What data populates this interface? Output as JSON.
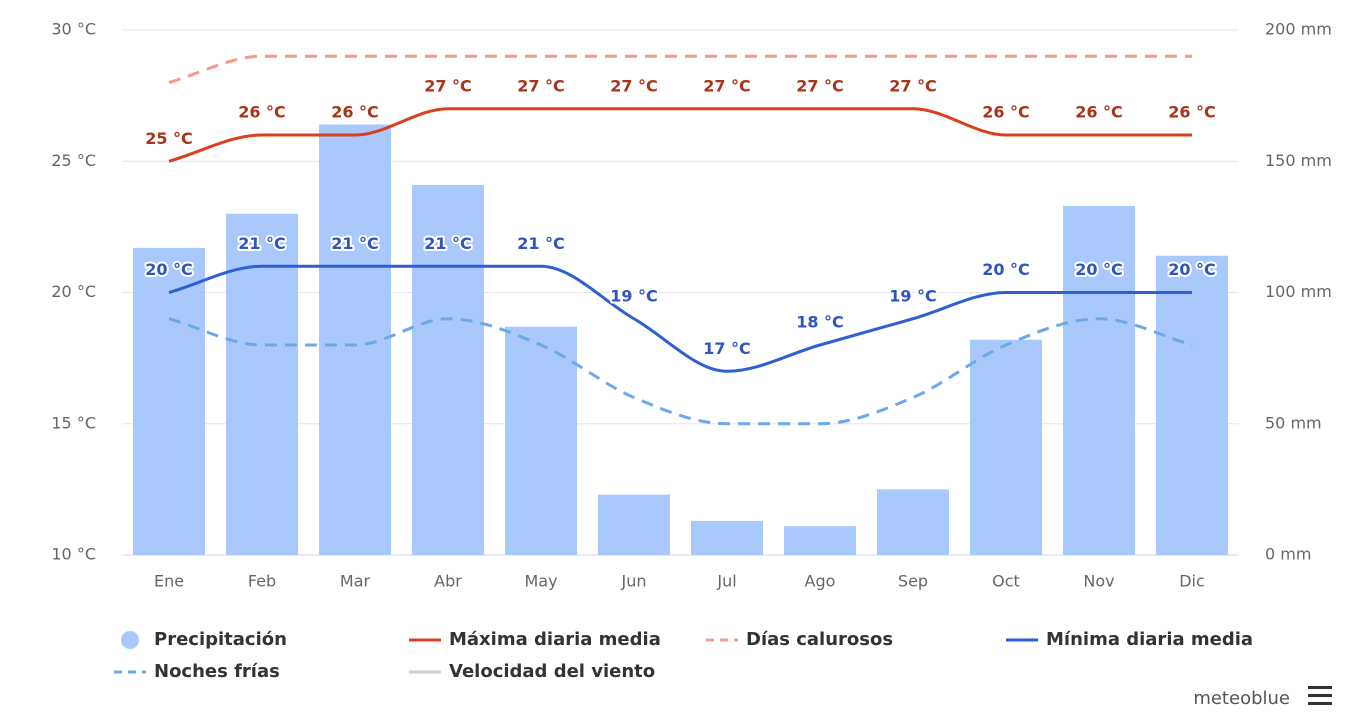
{
  "chart_data": {
    "type": "combo",
    "categories": [
      "Ene",
      "Feb",
      "Mar",
      "Abr",
      "May",
      "Jun",
      "Jul",
      "Ago",
      "Sep",
      "Oct",
      "Nov",
      "Dic"
    ],
    "ylim": [
      10,
      30
    ],
    "yticks": [
      {
        "value": 10,
        "label": "10 °C"
      },
      {
        "value": 15,
        "label": "15 °C"
      },
      {
        "value": 20,
        "label": "20 °C"
      },
      {
        "value": 25,
        "label": "25 °C"
      },
      {
        "value": 30,
        "label": "30 °C"
      }
    ],
    "y2lim": [
      0,
      200
    ],
    "y2ticks": [
      {
        "value": 0,
        "label": "0 mm"
      },
      {
        "value": 50,
        "label": "50 mm"
      },
      {
        "value": 100,
        "label": "100 mm"
      },
      {
        "value": 150,
        "label": "150 mm"
      },
      {
        "value": 200,
        "label": "200 mm"
      }
    ],
    "grid": true,
    "series": [
      {
        "name": "Precipitación",
        "type": "bar",
        "axis": "y2",
        "color": "#a9c9fd",
        "values": [
          117,
          130,
          164,
          141,
          87,
          23,
          13,
          11,
          25,
          82,
          133,
          114
        ]
      },
      {
        "name": "Máxima diaria media",
        "type": "line",
        "color": "#d9401f",
        "label_color": "#a8341a",
        "values": [
          25,
          26,
          26,
          27,
          27,
          27,
          27,
          27,
          27,
          26,
          26,
          26
        ],
        "value_labels": [
          "25 °C",
          "26 °C",
          "26 °C",
          "27 °C",
          "27 °C",
          "27 °C",
          "27 °C",
          "27 °C",
          "27 °C",
          "26 °C",
          "26 °C",
          "26 °C"
        ]
      },
      {
        "name": "Días calurosos",
        "type": "line",
        "dashed": true,
        "color": "#f79a8b",
        "values": [
          28,
          29,
          29,
          29,
          29,
          29,
          29,
          29,
          29,
          29,
          29,
          29
        ]
      },
      {
        "name": "Mínima diaria media",
        "type": "line",
        "color": "#2f5fd0",
        "label_color": "#2f55c0",
        "values": [
          20,
          21,
          21,
          21,
          21,
          19,
          17,
          18,
          19,
          20,
          20,
          20
        ],
        "value_labels": [
          "20 °C",
          "21 °C",
          "21 °C",
          "21 °C",
          "21 °C",
          "19 °C",
          "17 °C",
          "18 °C",
          "19 °C",
          "20 °C",
          "20 °C",
          "20 °C"
        ]
      },
      {
        "name": "Noches frías",
        "type": "line",
        "dashed": true,
        "color": "#6aaae8",
        "values": [
          19,
          18,
          18,
          19,
          18,
          16,
          15,
          15,
          16,
          18,
          19,
          18
        ]
      },
      {
        "name": "Velocidad del viento",
        "type": "line",
        "visible": false,
        "color": "#cccccc"
      }
    ],
    "credit": "meteoblue"
  }
}
